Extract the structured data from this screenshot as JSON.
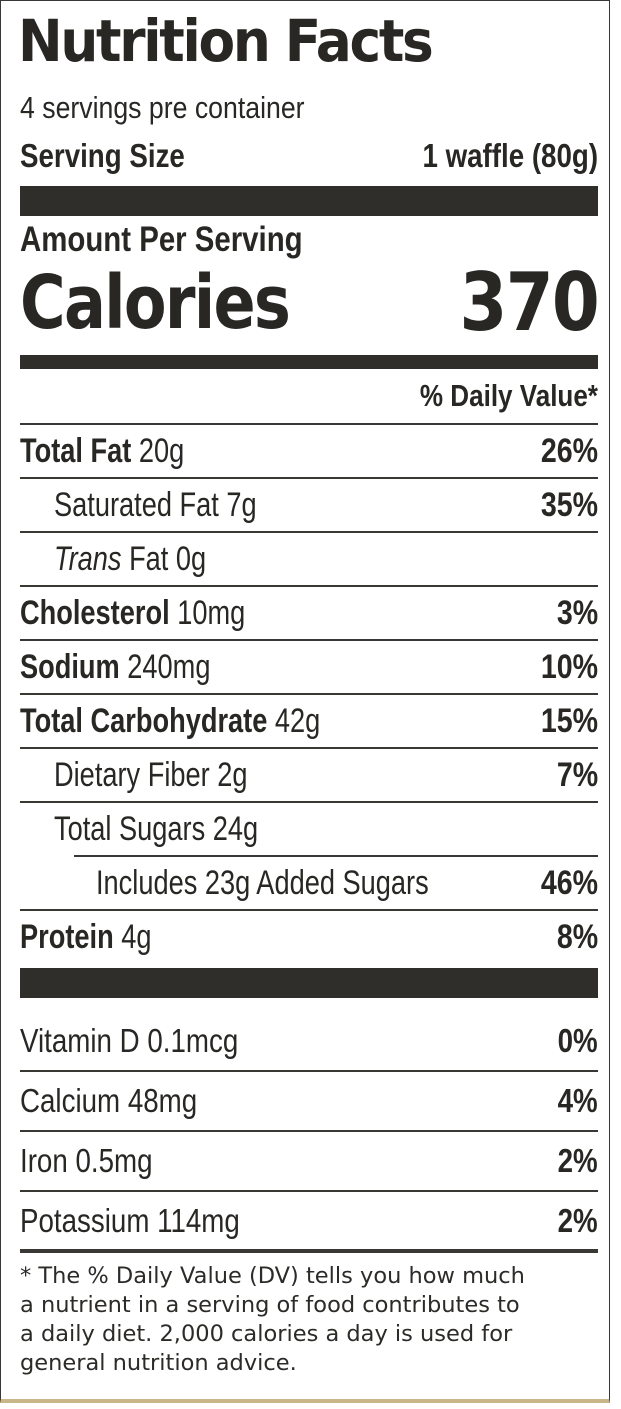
{
  "title": "Nutrition Facts",
  "servings_per_container": "4 servings pre container",
  "serving_size": {
    "label": "Serving Size",
    "value": "1 waffle (80g)"
  },
  "amount_per_serving": "Amount Per Serving",
  "calories": {
    "label": "Calories",
    "value": "370"
  },
  "daily_value_header": "% Daily Value*",
  "nutrients": [
    {
      "name": "Total Fat",
      "amount": "20g",
      "dv": "26%"
    },
    {
      "name": "Saturated Fat 7g",
      "dv": "35%"
    },
    {
      "name_italic": "Trans",
      "name_rest": " Fat 0g",
      "dv": ""
    },
    {
      "name": "Cholesterol",
      "amount": "10mg",
      "dv": "3%"
    },
    {
      "name": "Sodium",
      "amount": "240mg",
      "dv": "10%"
    },
    {
      "name": "Total Carbohydrate",
      "amount": "42g",
      "dv": "15%"
    },
    {
      "name": "Dietary Fiber 2g",
      "dv": "7%"
    },
    {
      "name": "Total Sugars 24g",
      "dv": ""
    },
    {
      "name": "Includes 23g Added Sugars",
      "dv": "46%"
    },
    {
      "name": "Protein",
      "amount": "4g",
      "dv": "8%"
    }
  ],
  "vitamins": [
    {
      "name": "Vitamin D 0.1mcg",
      "dv": "0%"
    },
    {
      "name": "Calcium 48mg",
      "dv": "4%"
    },
    {
      "name": "Iron 0.5mg",
      "dv": "2%"
    },
    {
      "name": "Potassium 114mg",
      "dv": "2%"
    }
  ],
  "footnote_lines": [
    "* The % Daily Value (DV) tells you how much",
    "a nutrient in a serving of food contributes to",
    "a daily diet. 2,000 calories a day is used for",
    "general nutrition advice."
  ],
  "colors": {
    "ink": "#302e2a",
    "border_bottom_accent": "#c9b78a"
  }
}
